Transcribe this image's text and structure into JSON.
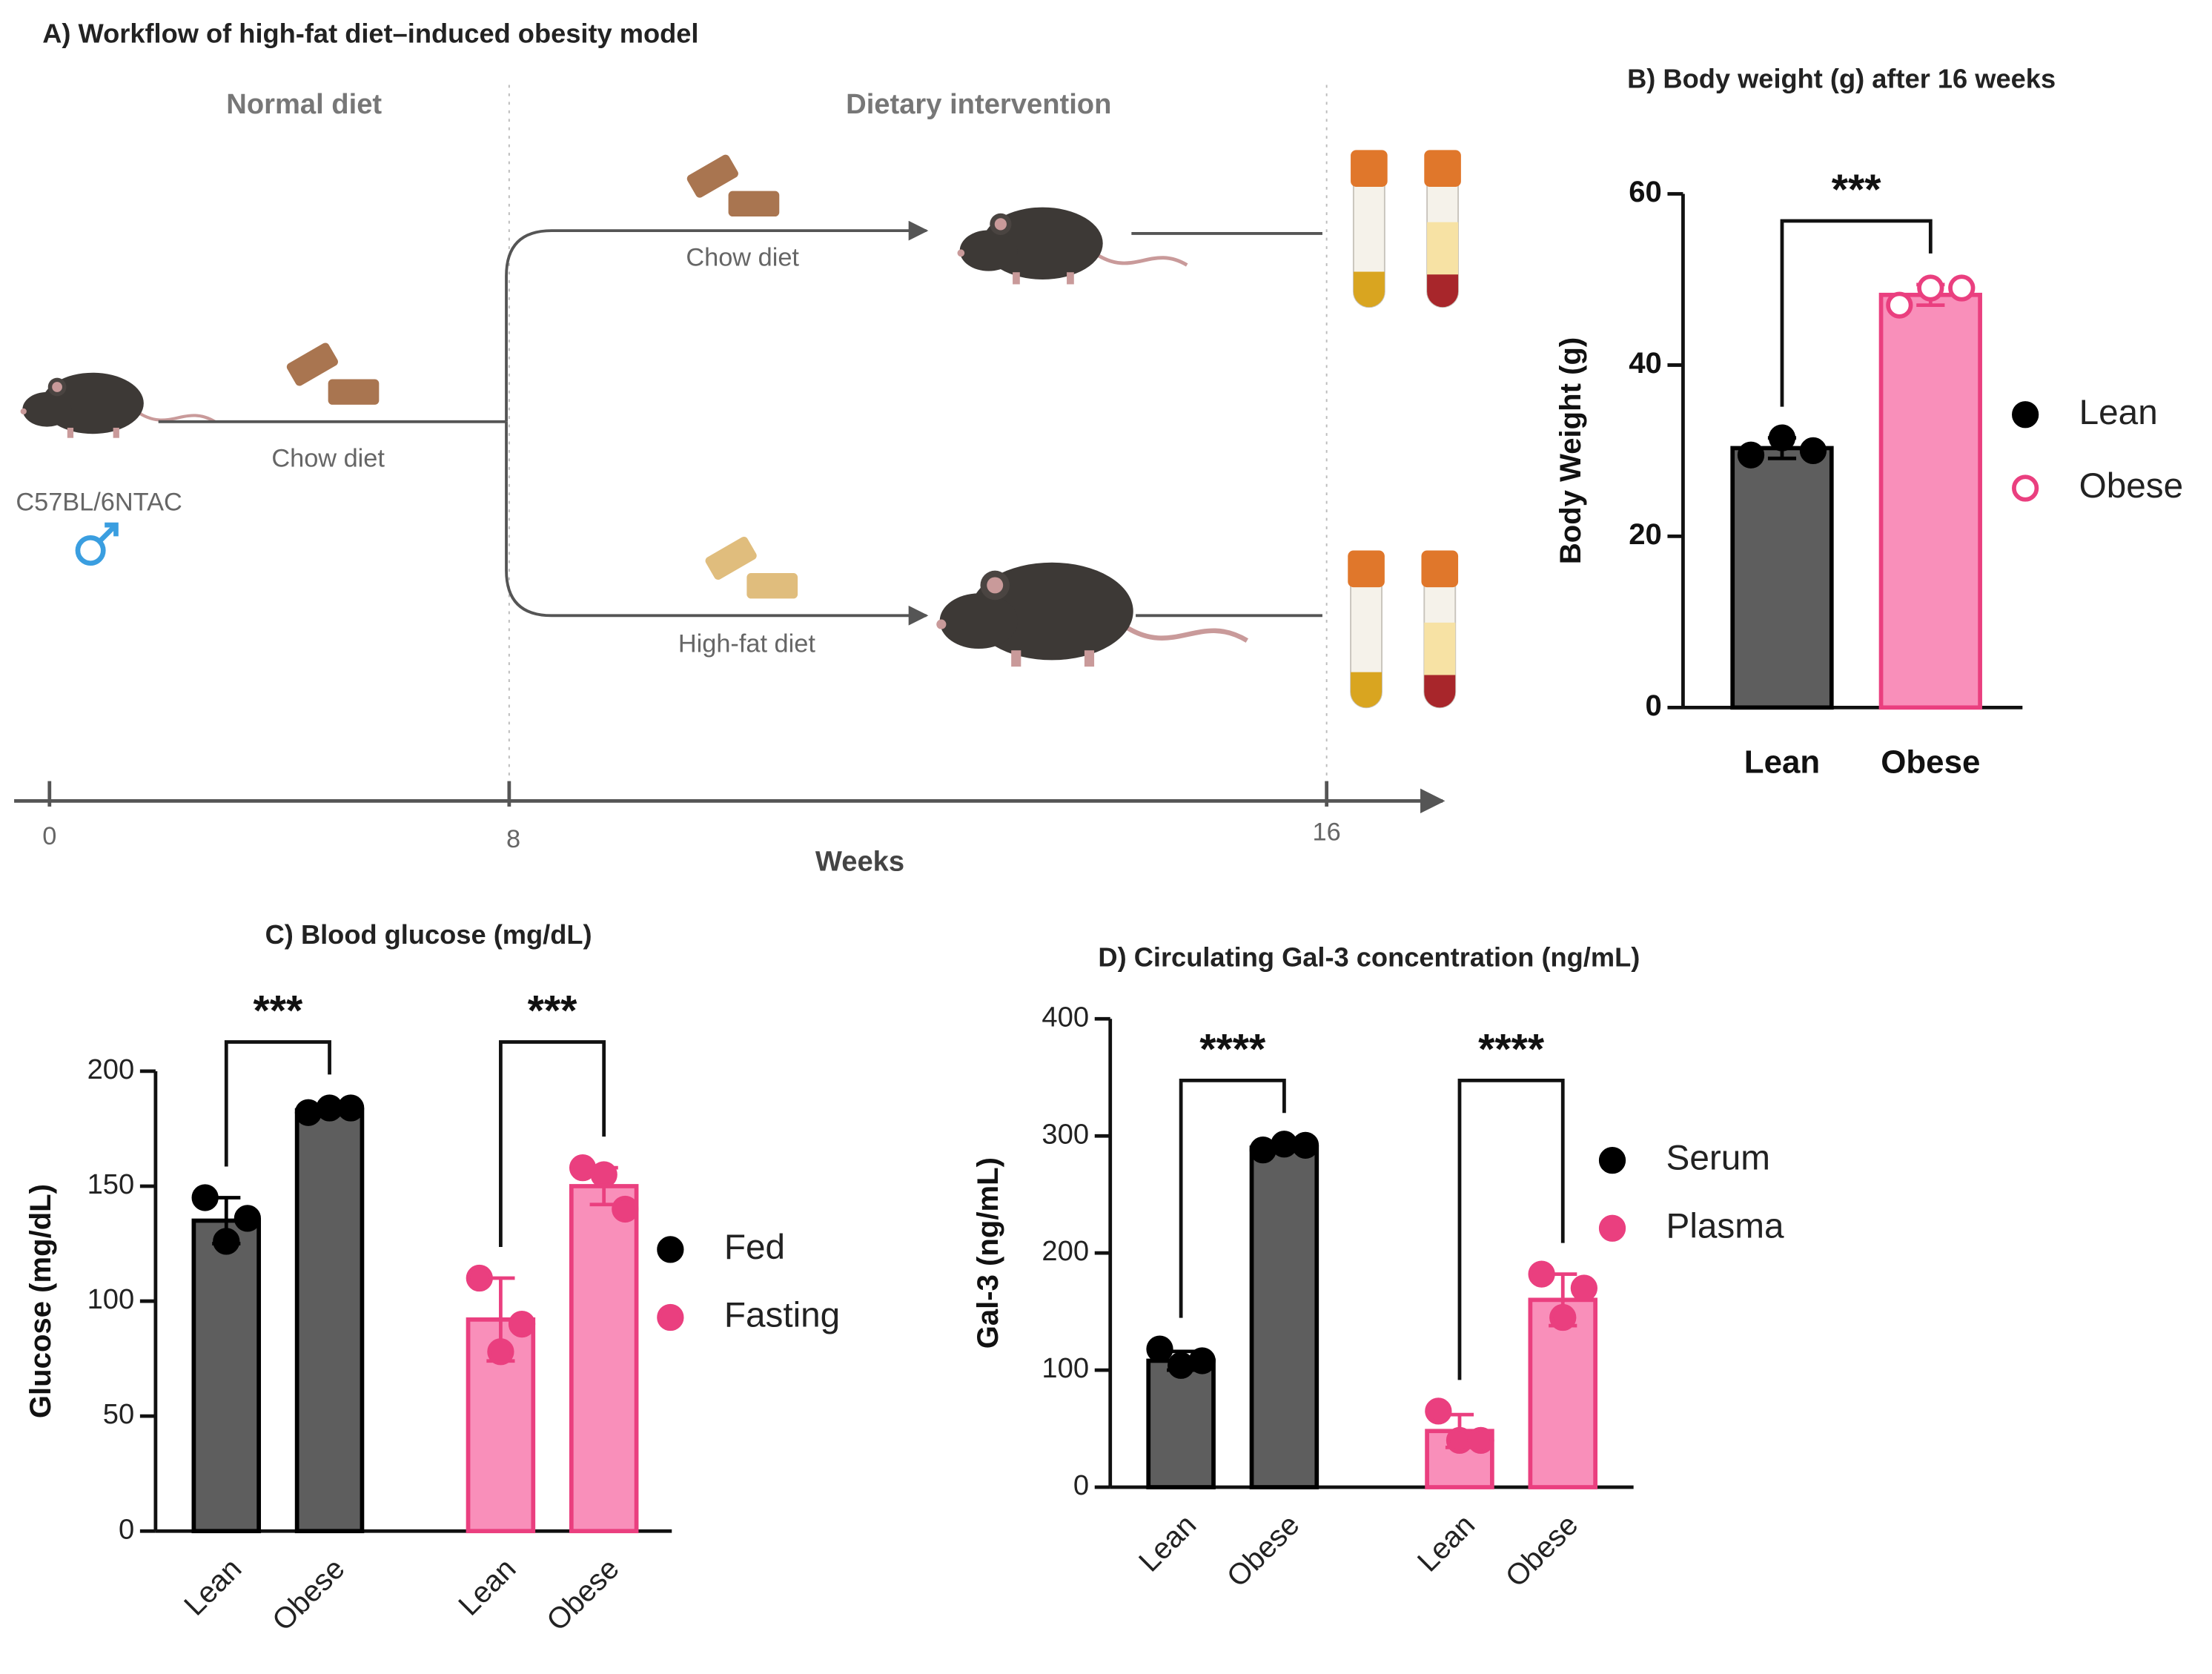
{
  "workflow": {
    "title": "A) Workflow of high-fat diet–induced obesity model",
    "phases": [
      "Normal diet",
      "Dietary intervention"
    ],
    "strain": "C57BL/6NTAC",
    "diets": [
      "Chow diet",
      "Chow diet",
      "High-fat diet"
    ],
    "timeline": {
      "ticks": [
        0,
        8,
        16
      ],
      "label": "Weeks"
    }
  },
  "chart_data": [
    {
      "type": "bar",
      "title": "B) Body weight (g) after 16 weeks",
      "ylabel": "Body Weight (g)",
      "ylim": [
        0,
        60
      ],
      "yticks": [
        0,
        20,
        40,
        60
      ],
      "significance": "***",
      "groups": [
        {
          "name": "Lean",
          "color": "#5e5e5e",
          "edge": "#000000",
          "point_color": "#000000",
          "marker": "filled",
          "categories": [
            "Lean"
          ],
          "values": [
            30.3
          ],
          "errors": [
            1.2
          ],
          "points": [
            [
              29.5,
              31.5,
              30
            ]
          ]
        },
        {
          "name": "Obese",
          "color": "#f98fba",
          "edge": "#ea3f7f",
          "point_color": "#ea3f7f",
          "marker": "open",
          "categories": [
            "Obese"
          ],
          "values": [
            48.2
          ],
          "errors": [
            1.2
          ],
          "points": [
            [
              47,
              49,
              49
            ]
          ]
        }
      ]
    },
    {
      "type": "bar",
      "title": "C) Blood glucose (mg/dL)",
      "ylabel": "Glucose (mg/dL)",
      "ylim": [
        0,
        200
      ],
      "yticks": [
        0,
        50,
        100,
        150,
        200
      ],
      "groups": [
        {
          "name": "Fed",
          "color": "#5e5e5e",
          "edge": "#000000",
          "point_color": "#000000",
          "marker": "filled",
          "categories": [
            "Lean",
            "Obese"
          ],
          "values": [
            135,
            183
          ],
          "errors": [
            10,
            2
          ],
          "points": [
            [
              145,
              126,
              136
            ],
            [
              182,
              184,
              184
            ]
          ],
          "significance": "***"
        },
        {
          "name": "Fasting",
          "color": "#f98fba",
          "edge": "#ea3f7f",
          "point_color": "#ea3f7f",
          "marker": "filled",
          "categories": [
            "Lean",
            "Obese"
          ],
          "values": [
            92,
            150
          ],
          "errors": [
            18,
            8
          ],
          "points": [
            [
              110,
              78,
              90
            ],
            [
              158,
              155,
              140
            ]
          ],
          "significance": "***"
        }
      ]
    },
    {
      "type": "bar",
      "title": "D) Circulating Gal-3 concentration (ng/mL)",
      "ylabel": "Gal-3 (ng/mL)",
      "ylim": [
        0,
        400
      ],
      "yticks": [
        0,
        100,
        200,
        300,
        400
      ],
      "groups": [
        {
          "name": "Serum",
          "color": "#5e5e5e",
          "edge": "#000000",
          "point_color": "#000000",
          "marker": "filled",
          "categories": [
            "Lean",
            "Obese"
          ],
          "values": [
            108,
            290
          ],
          "errors": [
            8,
            3
          ],
          "points": [
            [
              118,
              104,
              108
            ],
            [
              288,
              293,
              292
            ]
          ],
          "significance": "****"
        },
        {
          "name": "Plasma",
          "color": "#f98fba",
          "edge": "#ea3f7f",
          "point_color": "#ea3f7f",
          "marker": "filled",
          "categories": [
            "Lean",
            "Obese"
          ],
          "values": [
            48,
            160
          ],
          "errors": [
            14,
            22
          ],
          "points": [
            [
              65,
              40,
              40
            ],
            [
              182,
              145,
              170
            ]
          ],
          "significance": "****"
        }
      ]
    }
  ]
}
